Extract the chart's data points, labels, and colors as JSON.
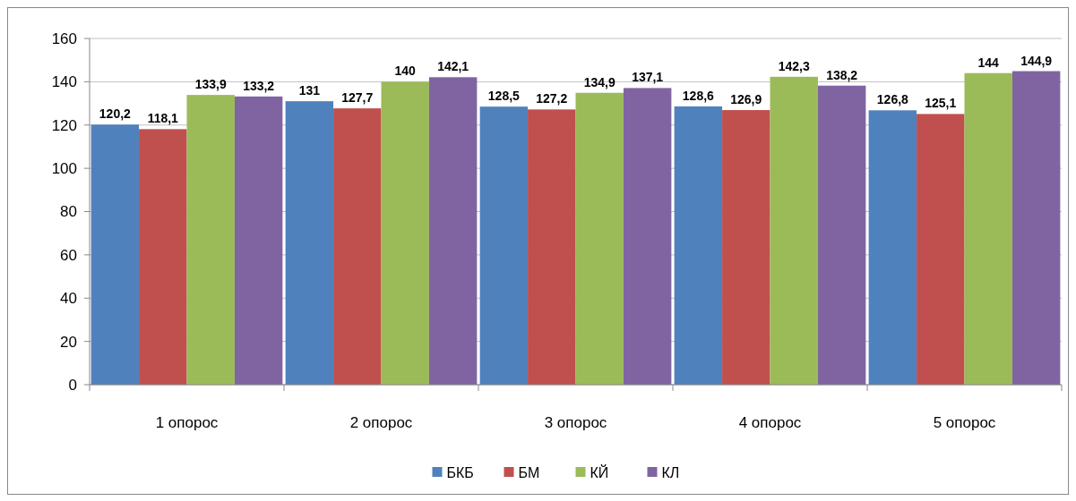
{
  "chart_data": {
    "type": "bar",
    "categories": [
      "1 опорос",
      "2 опорос",
      "3 опорос",
      "4 опорос",
      "5 опорос"
    ],
    "series": [
      {
        "name": "БКБ",
        "color": "#4f81bd",
        "values": [
          120.2,
          131,
          128.5,
          128.6,
          126.8
        ],
        "value_labels": [
          "120,2",
          "131",
          "128,5",
          "128,6",
          "126,8"
        ]
      },
      {
        "name": "БМ",
        "color": "#c0504d",
        "values": [
          118.1,
          127.7,
          127.2,
          126.9,
          125.1
        ],
        "value_labels": [
          "118,1",
          "127,7",
          "127,2",
          "126,9",
          "125,1"
        ]
      },
      {
        "name": "КЙ",
        "color": "#9bbb59",
        "values": [
          133.9,
          140,
          134.9,
          142.3,
          144
        ],
        "value_labels": [
          "133,9",
          "140",
          "134,9",
          "142,3",
          "144"
        ]
      },
      {
        "name": "КЛ",
        "color": "#8064a2",
        "values": [
          133.2,
          142.1,
          137.1,
          138.2,
          144.9
        ],
        "value_labels": [
          "133,2",
          "142,1",
          "137,1",
          "138,2",
          "144,9"
        ]
      }
    ],
    "ylim": [
      0,
      160
    ],
    "yticks": [
      0,
      20,
      40,
      60,
      80,
      100,
      120,
      140,
      160
    ],
    "grid": "y",
    "legend": "bottom"
  }
}
